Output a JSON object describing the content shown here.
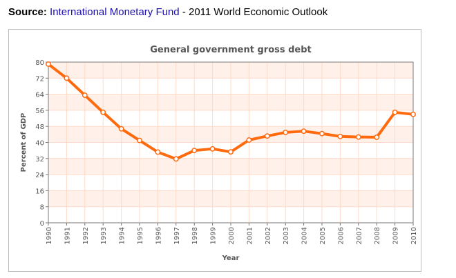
{
  "source": {
    "label": "Source:",
    "org": "International Monetary Fund",
    "separator": " - ",
    "publication": "2011 World Economic Outlook"
  },
  "colors": {
    "line": "#ff6a0f",
    "point_fill": "#ffffff",
    "band": "#fff1ea",
    "grid": "#ffd9c7",
    "axis": "#7a7a7a",
    "title": "#555555",
    "tick_text": "#555555"
  },
  "chart_data": {
    "type": "line",
    "title": "General government gross debt",
    "xlabel": "Year",
    "ylabel": "Percent of GDP",
    "ylim": [
      0,
      80
    ],
    "yticks": [
      0,
      8,
      16,
      24,
      32,
      40,
      48,
      56,
      64,
      72,
      80
    ],
    "categories": [
      "1990",
      "1991",
      "1992",
      "1993",
      "1994",
      "1995",
      "1996",
      "1997",
      "1998",
      "1999",
      "2000",
      "2001",
      "2002",
      "2003",
      "2004",
      "2005",
      "2006",
      "2007",
      "2008",
      "2009",
      "2010"
    ],
    "series": [
      {
        "name": "General government gross debt",
        "values": [
          79.0,
          72.0,
          63.5,
          55.0,
          46.8,
          41.0,
          35.2,
          31.8,
          36.0,
          36.8,
          35.3,
          41.2,
          43.2,
          45.0,
          45.6,
          44.4,
          43.0,
          42.7,
          42.6,
          55.0,
          54.0
        ]
      }
    ]
  }
}
